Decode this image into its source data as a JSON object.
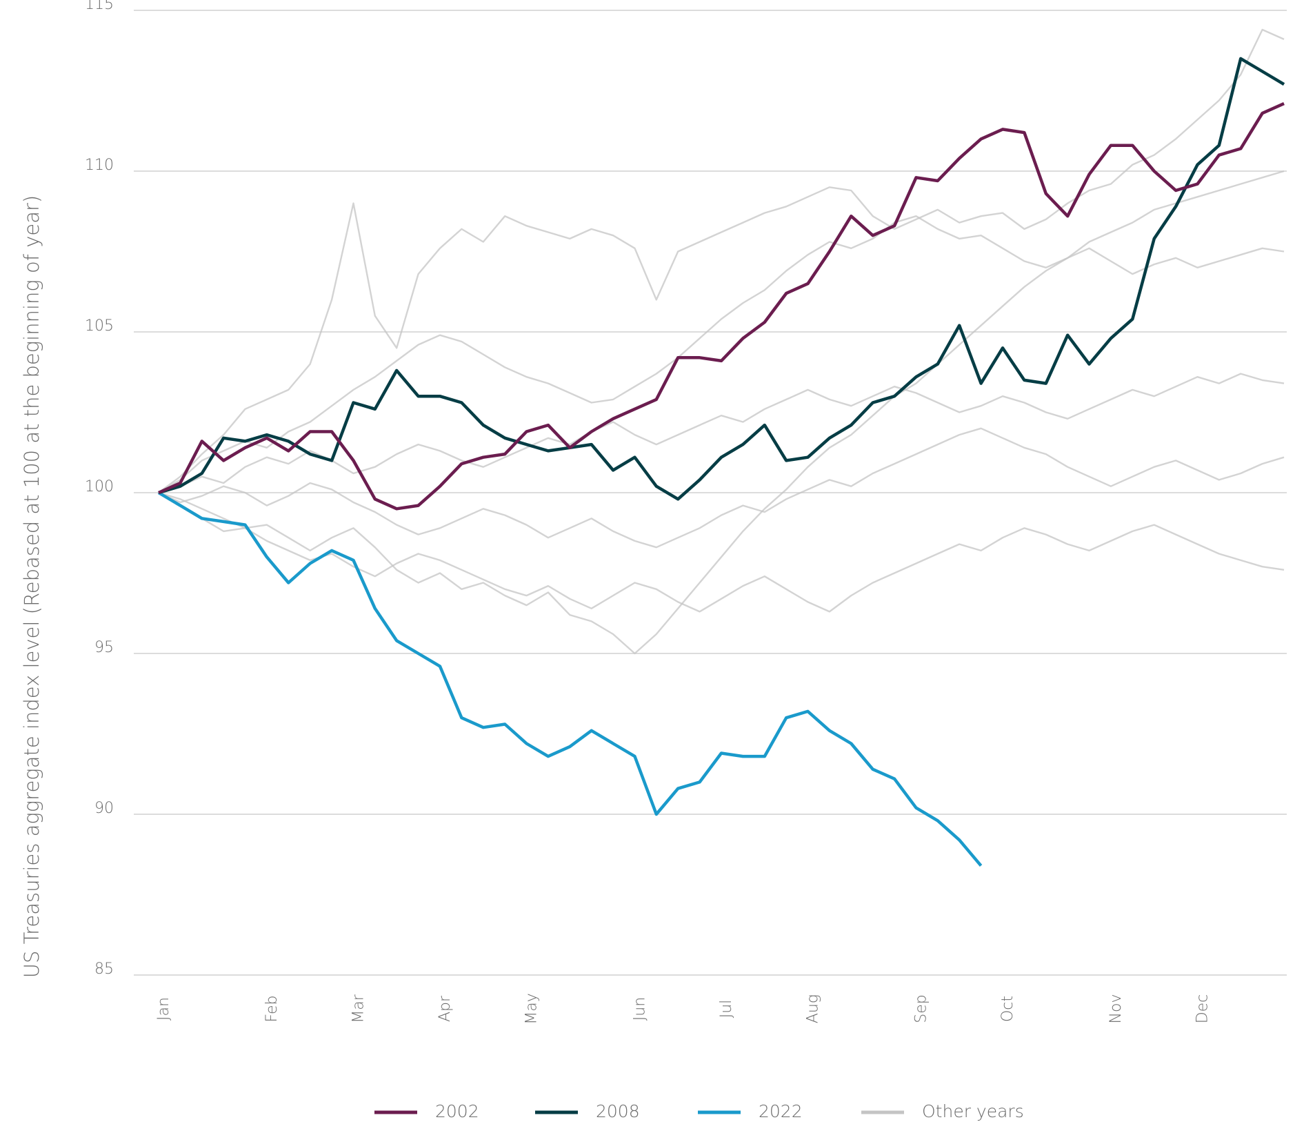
{
  "chart_data": {
    "type": "line",
    "y_label": "US Treasuries aggregate index level (Rebased at 100 at the beginning of year)",
    "categories": [
      "Jan",
      null,
      null,
      null,
      null,
      "Feb",
      null,
      null,
      null,
      "Mar",
      null,
      null,
      null,
      "Apr",
      null,
      null,
      null,
      "May",
      null,
      null,
      null,
      null,
      "Jun",
      null,
      null,
      null,
      "Jul",
      null,
      null,
      null,
      "Aug",
      null,
      null,
      null,
      null,
      "Sep",
      null,
      null,
      null,
      "Oct",
      null,
      null,
      null,
      null,
      "Nov",
      null,
      null,
      null,
      "Dec",
      null,
      null,
      null,
      null
    ],
    "ylim": [
      85,
      115
    ],
    "yticks": [
      85,
      90,
      95,
      100,
      105,
      110,
      115
    ],
    "grid": true,
    "legend": "bottom",
    "series": [
      {
        "name": "2002",
        "color": "#6b1d4f",
        "values": [
          100,
          100.3,
          101.6,
          101.0,
          101.4,
          101.7,
          101.3,
          101.9,
          101.9,
          101.0,
          99.8,
          99.5,
          99.6,
          100.2,
          100.9,
          101.1,
          101.2,
          101.9,
          102.1,
          101.4,
          101.9,
          102.3,
          102.6,
          102.9,
          104.2,
          104.2,
          104.1,
          104.8,
          105.3,
          106.2,
          106.5,
          107.5,
          108.6,
          108.0,
          108.3,
          109.8,
          109.7,
          110.4,
          111.0,
          111.3,
          111.2,
          109.3,
          108.6,
          109.9,
          110.8,
          110.8,
          110.0,
          109.4,
          109.6,
          110.5,
          110.7,
          111.8,
          112.1
        ]
      },
      {
        "name": "2008",
        "color": "#063d45",
        "values": [
          100,
          100.2,
          100.6,
          101.7,
          101.6,
          101.8,
          101.6,
          101.2,
          101.0,
          102.8,
          102.6,
          103.8,
          103.0,
          103.0,
          102.8,
          102.1,
          101.7,
          101.5,
          101.3,
          101.4,
          101.5,
          100.7,
          101.1,
          100.2,
          99.8,
          100.4,
          101.1,
          101.5,
          102.1,
          101.0,
          101.1,
          101.7,
          102.1,
          102.8,
          103.0,
          103.6,
          104.0,
          105.2,
          103.4,
          104.5,
          103.5,
          103.4,
          104.9,
          104.0,
          104.8,
          105.4,
          107.9,
          108.9,
          110.2,
          110.8,
          113.5,
          113.1,
          112.7
        ]
      },
      {
        "name": "2022",
        "color": "#1a9acb",
        "values": [
          100,
          99.6,
          99.2,
          99.1,
          99.0,
          98.0,
          97.2,
          97.8,
          98.2,
          97.9,
          96.4,
          95.4,
          95.0,
          94.6,
          93.0,
          92.7,
          92.8,
          92.2,
          91.8,
          92.1,
          92.6,
          92.2,
          91.8,
          90.0,
          90.8,
          91.0,
          91.9,
          91.8,
          91.8,
          93.0,
          93.2,
          92.6,
          92.2,
          91.4,
          91.1,
          90.2,
          89.8,
          89.2,
          88.4,
          null,
          null,
          null,
          null,
          null,
          null,
          null,
          null,
          null,
          null,
          null,
          null,
          null,
          null
        ]
      },
      {
        "name": "Other years",
        "color": "#c4c4c4",
        "values": [
          100,
          100.5,
          101.2,
          101.8,
          102.6,
          102.9,
          103.2,
          104.0,
          106.0,
          109.0,
          105.5,
          104.5,
          106.8,
          107.6,
          108.2,
          107.8,
          108.6,
          108.3,
          108.1,
          107.9,
          108.2,
          108.0,
          107.6,
          106.0,
          107.5,
          107.8,
          108.1,
          108.4,
          108.7,
          108.9,
          109.2,
          109.5,
          109.4,
          108.6,
          108.2,
          108.5,
          108.8,
          108.4,
          108.6,
          108.7,
          108.2,
          108.5,
          109.0,
          109.4,
          109.6,
          110.2,
          110.5,
          111.0,
          111.6,
          112.2,
          113.0,
          114.4,
          114.1
        ]
      },
      {
        "color": "#c4c4c4",
        "values": [
          100,
          99.8,
          99.5,
          99.2,
          98.9,
          99.0,
          98.6,
          98.2,
          98.6,
          98.9,
          98.3,
          97.6,
          97.2,
          97.5,
          97.0,
          97.2,
          96.8,
          96.5,
          96.9,
          96.2,
          96.0,
          95.6,
          95.0,
          95.6,
          96.4,
          97.2,
          98.0,
          98.8,
          99.5,
          100.1,
          100.8,
          101.4,
          101.8,
          102.4,
          103.0,
          103.4,
          104.0,
          104.6,
          105.2,
          105.8,
          106.4,
          106.9,
          107.3,
          107.8,
          108.1,
          108.4,
          108.8,
          109.0,
          109.2,
          109.4,
          109.6,
          109.8,
          110.0
        ]
      },
      {
        "color": "#c4c4c4",
        "values": [
          100,
          100.4,
          101.0,
          101.3,
          101.6,
          101.4,
          101.9,
          102.2,
          102.7,
          103.2,
          103.6,
          104.1,
          104.6,
          104.9,
          104.7,
          104.3,
          103.9,
          103.6,
          103.4,
          103.1,
          102.8,
          102.9,
          103.3,
          103.7,
          104.2,
          104.8,
          105.4,
          105.9,
          106.3,
          106.9,
          107.4,
          107.8,
          107.6,
          107.9,
          108.4,
          108.6,
          108.2,
          107.9,
          108.0,
          107.6,
          107.2,
          107.0,
          107.3,
          107.6,
          107.2,
          106.8,
          107.1,
          107.3,
          107.0,
          107.2,
          107.4,
          107.6,
          107.5
        ]
      },
      {
        "color": "#c4c4c4",
        "values": [
          100,
          100.2,
          100.5,
          100.3,
          100.8,
          101.1,
          100.9,
          101.3,
          101.0,
          100.6,
          100.8,
          101.2,
          101.5,
          101.3,
          101.0,
          100.8,
          101.1,
          101.4,
          101.7,
          101.5,
          101.9,
          102.2,
          101.8,
          101.5,
          101.8,
          102.1,
          102.4,
          102.2,
          102.6,
          102.9,
          103.2,
          102.9,
          102.7,
          103.0,
          103.3,
          103.1,
          102.8,
          102.5,
          102.7,
          103.0,
          102.8,
          102.5,
          102.3,
          102.6,
          102.9,
          103.2,
          103.0,
          103.3,
          103.6,
          103.4,
          103.7,
          103.5,
          103.4
        ]
      },
      {
        "color": "#c4c4c4",
        "values": [
          100,
          99.7,
          99.9,
          100.2,
          100.0,
          99.6,
          99.9,
          100.3,
          100.1,
          99.7,
          99.4,
          99.0,
          98.7,
          98.9,
          99.2,
          99.5,
          99.3,
          99.0,
          98.6,
          98.9,
          99.2,
          98.8,
          98.5,
          98.3,
          98.6,
          98.9,
          99.3,
          99.6,
          99.4,
          99.8,
          100.1,
          100.4,
          100.2,
          100.6,
          100.9,
          101.2,
          101.5,
          101.8,
          102.0,
          101.7,
          101.4,
          101.2,
          100.8,
          100.5,
          100.2,
          100.5,
          100.8,
          101.0,
          100.7,
          100.4,
          100.6,
          100.9,
          101.1
        ]
      },
      {
        "color": "#c4c4c4",
        "values": [
          100,
          99.6,
          99.2,
          98.8,
          98.9,
          98.5,
          98.2,
          97.9,
          98.1,
          97.7,
          97.4,
          97.8,
          98.1,
          97.9,
          97.6,
          97.3,
          97.0,
          96.8,
          97.1,
          96.7,
          96.4,
          96.8,
          97.2,
          97.0,
          96.6,
          96.3,
          96.7,
          97.1,
          97.4,
          97.0,
          96.6,
          96.3,
          96.8,
          97.2,
          97.5,
          97.8,
          98.1,
          98.4,
          98.2,
          98.6,
          98.9,
          98.7,
          98.4,
          98.2,
          98.5,
          98.8,
          99.0,
          98.7,
          98.4,
          98.1,
          97.9,
          97.7,
          97.6
        ]
      }
    ]
  }
}
